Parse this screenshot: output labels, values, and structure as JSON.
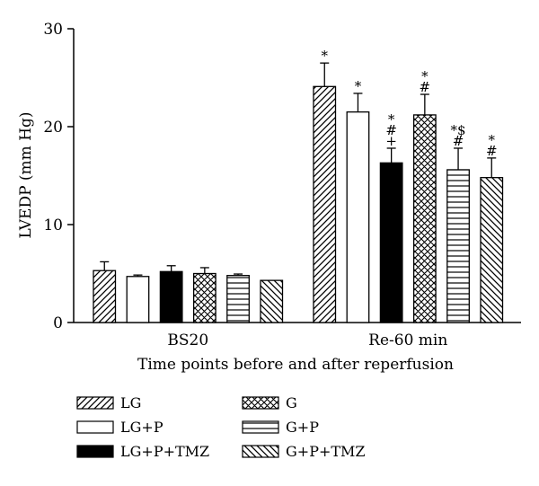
{
  "chart_data": {
    "type": "bar",
    "ylabel": "LVEDP (mm Hg)",
    "xlabel": "Time points before and after reperfusion",
    "ylim": [
      0,
      30
    ],
    "yticks": [
      "0",
      "10",
      "20",
      "30"
    ],
    "categories": [
      "BS20",
      "Re-60 min"
    ],
    "series": [
      {
        "name": "LG",
        "pattern": "diag-right",
        "values": [
          5.3,
          24.1
        ],
        "errors": [
          0.9,
          2.4
        ],
        "annotations": [
          "",
          "*"
        ]
      },
      {
        "name": "LG+P",
        "pattern": "open",
        "values": [
          4.7,
          21.5
        ],
        "errors": [
          0.15,
          1.9
        ],
        "annotations": [
          "",
          "*"
        ]
      },
      {
        "name": "LG+P+TMZ",
        "pattern": "solid",
        "values": [
          5.2,
          16.3
        ],
        "errors": [
          0.6,
          1.5
        ],
        "annotations": [
          "",
          "*\n#\n+"
        ]
      },
      {
        "name": "G",
        "pattern": "crosshatch",
        "values": [
          5.0,
          21.2
        ],
        "errors": [
          0.6,
          2.1
        ],
        "annotations": [
          "",
          "*\n#"
        ]
      },
      {
        "name": "G+P",
        "pattern": "horizontal",
        "values": [
          4.8,
          15.6
        ],
        "errors": [
          0.15,
          2.2
        ],
        "annotations": [
          "",
          "*$\n#"
        ]
      },
      {
        "name": "G+P+TMZ",
        "pattern": "diag-left",
        "values": [
          4.3,
          14.8
        ],
        "errors": [
          0.0,
          2.0
        ],
        "annotations": [
          "",
          "*\n#"
        ]
      }
    ]
  }
}
